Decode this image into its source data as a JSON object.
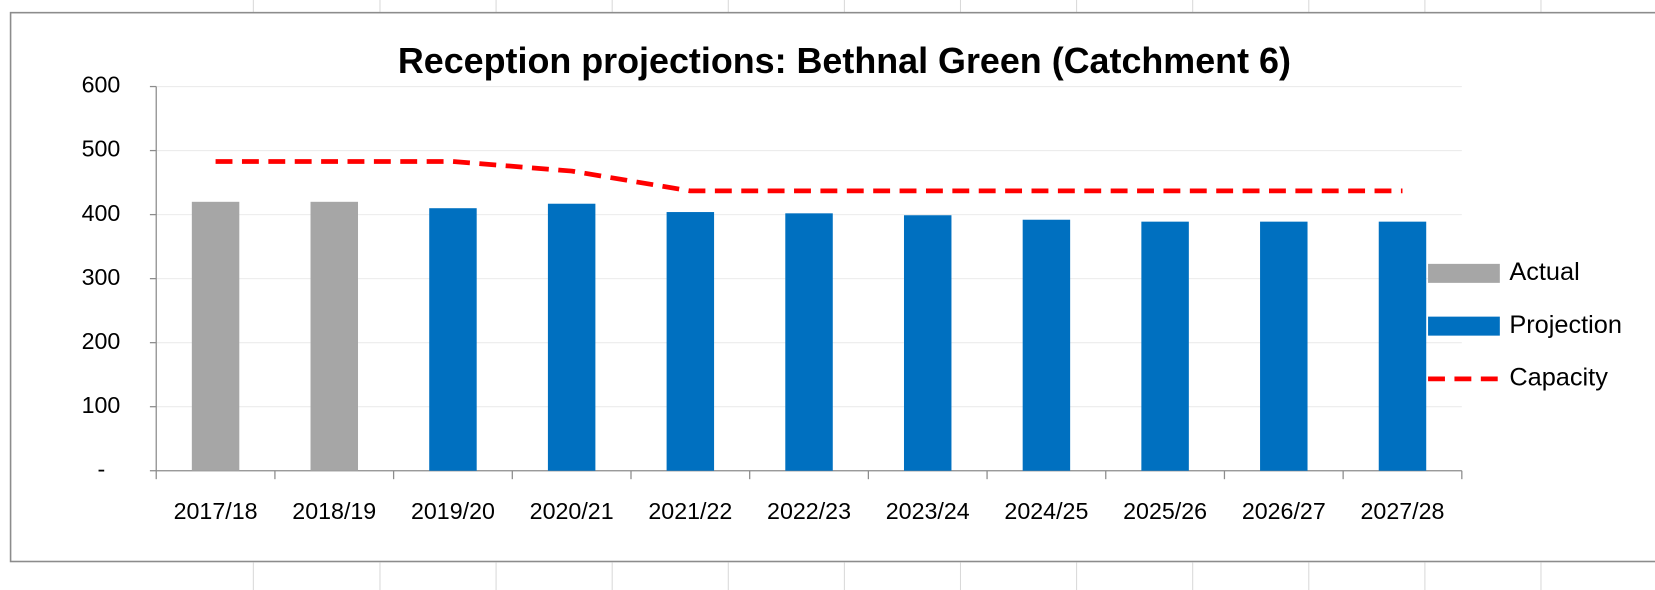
{
  "chart_data": {
    "type": "bar",
    "title": "Reception projections: Bethnal Green (Catchment 6)",
    "categories": [
      "2017/18",
      "2018/19",
      "2019/20",
      "2020/21",
      "2021/22",
      "2022/23",
      "2023/24",
      "2024/25",
      "2025/26",
      "2026/27",
      "2027/28"
    ],
    "series": [
      {
        "name": "Actual",
        "type": "bar",
        "color": "#a6a6a6",
        "values": [
          420,
          420,
          null,
          null,
          null,
          null,
          null,
          null,
          null,
          null,
          null
        ]
      },
      {
        "name": "Projection",
        "type": "bar",
        "color": "#0070c0",
        "values": [
          null,
          null,
          410,
          417,
          404,
          402,
          399,
          392,
          389,
          389,
          389
        ]
      },
      {
        "name": "Capacity",
        "type": "line",
        "color": "#ff0000",
        "dashed": true,
        "values": [
          483,
          483,
          483,
          468,
          437,
          437,
          437,
          437,
          437,
          437,
          437
        ]
      }
    ],
    "ylim": [
      0,
      600
    ],
    "yticks": [
      {
        "value": 0,
        "label": "-"
      },
      100,
      200,
      300,
      400,
      500,
      600
    ],
    "grid": true,
    "legend": "right"
  }
}
